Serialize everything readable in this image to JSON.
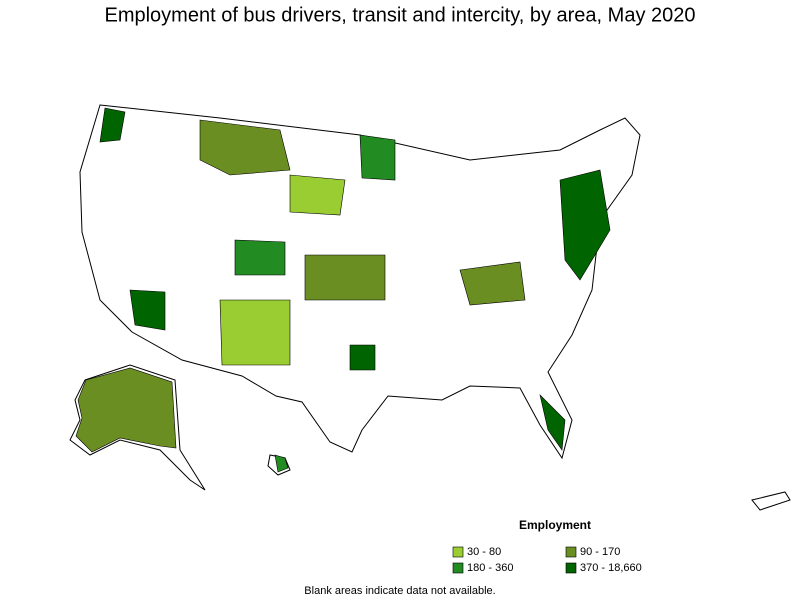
{
  "title": "Employment of bus drivers, transit and intercity, by area, May 2020",
  "legend": {
    "title": "Employment",
    "items": [
      {
        "label": "30 - 80",
        "color": "#9acd32"
      },
      {
        "label": "90 - 170",
        "color": "#6b8e23"
      },
      {
        "label": "180 - 360",
        "color": "#228b22"
      },
      {
        "label": "370 - 18,660",
        "color": "#006400"
      }
    ]
  },
  "note": "Blank areas indicate data not available."
}
